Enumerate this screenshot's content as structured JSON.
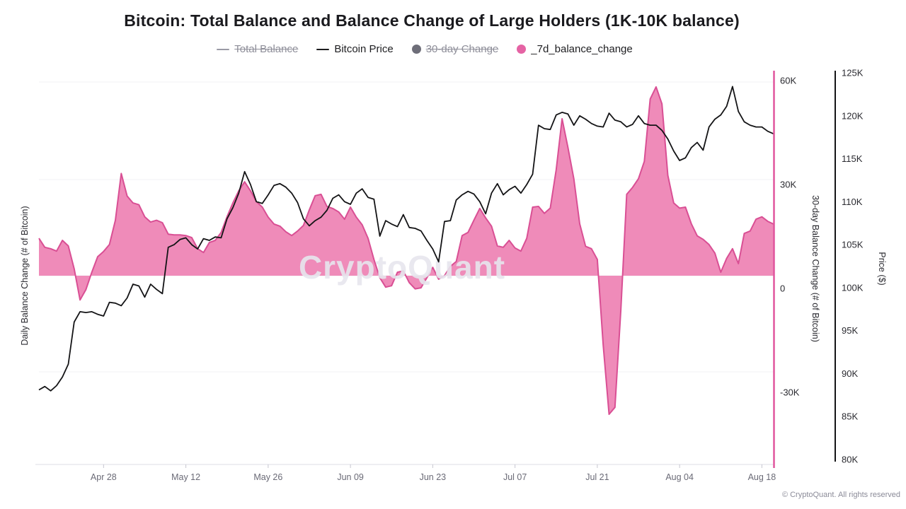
{
  "title": "Bitcoin: Total Balance and Balance Change of Large Holders (1K-10K balance)",
  "watermark": "CryptoQuant",
  "footer": "© CryptoQuant. All rights reserved",
  "legend": {
    "items": [
      {
        "label": "Total Balance",
        "marker": "line",
        "color": "#9a9aa5",
        "disabled": true
      },
      {
        "label": "Bitcoin Price",
        "marker": "line",
        "color": "#1c1c1e",
        "disabled": false
      },
      {
        "label": "30-day Change",
        "marker": "dot",
        "color": "#6e6e79",
        "disabled": true
      },
      {
        "label": "_7d_balance_change",
        "marker": "dot",
        "color": "#e563a4",
        "disabled": false
      }
    ]
  },
  "axes": {
    "y_left_label": "Daily Balance Change (# of Bitcoin)",
    "y_right_inner_label": "30-day Balance Change (# of Bitcoin)",
    "y_right_outer_label": "Price ($)",
    "y_right_inner_ticks": [
      {
        "label": "60K",
        "value": 60
      },
      {
        "label": "30K",
        "value": 30
      },
      {
        "label": "0",
        "value": 0
      },
      {
        "label": "-30K",
        "value": -30
      }
    ],
    "y_right_outer_ticks": [
      {
        "label": "125K",
        "value": 125
      },
      {
        "label": "120K",
        "value": 120
      },
      {
        "label": "115K",
        "value": 115
      },
      {
        "label": "110K",
        "value": 110
      },
      {
        "label": "105K",
        "value": 105
      },
      {
        "label": "100K",
        "value": 100
      },
      {
        "label": "95K",
        "value": 95
      },
      {
        "label": "90K",
        "value": 90
      },
      {
        "label": "85K",
        "value": 85
      },
      {
        "label": "80K",
        "value": 80
      }
    ],
    "x_ticks": [
      {
        "label": "Apr 28",
        "i": 11
      },
      {
        "label": "May 12",
        "i": 25
      },
      {
        "label": "May 26",
        "i": 39
      },
      {
        "label": "Jun 09",
        "i": 53
      },
      {
        "label": "Jun 23",
        "i": 67
      },
      {
        "label": "Jul 07",
        "i": 81
      },
      {
        "label": "Jul 21",
        "i": 95
      },
      {
        "label": "Aug 04",
        "i": 109
      },
      {
        "label": "Aug 18",
        "i": 123
      }
    ]
  },
  "colors": {
    "price_line": "#141416",
    "area_fill": "#ef8bb9",
    "area_stroke": "#d94f94",
    "pink_axis": "#e0569e",
    "grid": "#f2f2f6",
    "x_axis_line": "#dcdce4",
    "x_tick_mark": "#c6c6d0",
    "y_tick_text": "#2a2a30",
    "x_tick_text": "#6a6a76",
    "watermark": "#e7e6ee"
  },
  "chart_data": {
    "type": "combo",
    "title": "Bitcoin: Total Balance and Balance Change of Large Holders (1K-10K balance)",
    "x": [
      "Apr 17",
      "Apr 18",
      "Apr 19",
      "Apr 20",
      "Apr 21",
      "Apr 22",
      "Apr 23",
      "Apr 24",
      "Apr 25",
      "Apr 26",
      "Apr 27",
      "Apr 28",
      "Apr 29",
      "Apr 30",
      "May 01",
      "May 02",
      "May 03",
      "May 04",
      "May 05",
      "May 06",
      "May 07",
      "May 08",
      "May 09",
      "May 10",
      "May 11",
      "May 12",
      "May 13",
      "May 14",
      "May 15",
      "May 16",
      "May 17",
      "May 18",
      "May 19",
      "May 20",
      "May 21",
      "May 22",
      "May 23",
      "May 24",
      "May 25",
      "May 26",
      "May 27",
      "May 28",
      "May 29",
      "May 30",
      "May 31",
      "Jun 01",
      "Jun 02",
      "Jun 03",
      "Jun 04",
      "Jun 05",
      "Jun 06",
      "Jun 07",
      "Jun 08",
      "Jun 09",
      "Jun 10",
      "Jun 11",
      "Jun 12",
      "Jun 13",
      "Jun 14",
      "Jun 15",
      "Jun 16",
      "Jun 17",
      "Jun 18",
      "Jun 19",
      "Jun 20",
      "Jun 21",
      "Jun 22",
      "Jun 23",
      "Jun 24",
      "Jun 25",
      "Jun 26",
      "Jun 27",
      "Jun 28",
      "Jun 29",
      "Jun 30",
      "Jul 01",
      "Jul 02",
      "Jul 03",
      "Jul 04",
      "Jul 05",
      "Jul 06",
      "Jul 07",
      "Jul 08",
      "Jul 09",
      "Jul 10",
      "Jul 11",
      "Jul 12",
      "Jul 13",
      "Jul 14",
      "Jul 15",
      "Jul 16",
      "Jul 17",
      "Jul 18",
      "Jul 19",
      "Jul 20",
      "Jul 21",
      "Jul 22",
      "Jul 23",
      "Jul 24",
      "Jul 25",
      "Jul 26",
      "Jul 27",
      "Jul 28",
      "Jul 29",
      "Jul 30",
      "Jul 31",
      "Aug 01",
      "Aug 02",
      "Aug 03",
      "Aug 04",
      "Aug 05",
      "Aug 06",
      "Aug 07",
      "Aug 08",
      "Aug 09",
      "Aug 10",
      "Aug 11",
      "Aug 12",
      "Aug 13",
      "Aug 14",
      "Aug 15",
      "Aug 16",
      "Aug 17",
      "Aug 18",
      "Aug 19",
      "Aug 20"
    ],
    "series": [
      {
        "name": "Bitcoin Price",
        "type": "line",
        "axis": "price",
        "unit": "thousand USD",
        "values": [
          88.1,
          88.5,
          88.0,
          88.6,
          89.6,
          91.1,
          96.0,
          97.2,
          97.1,
          97.2,
          96.9,
          96.7,
          98.3,
          98.2,
          97.9,
          98.8,
          100.4,
          100.2,
          98.9,
          100.4,
          99.8,
          99.3,
          104.7,
          105.0,
          105.6,
          105.8,
          105.0,
          104.5,
          105.7,
          105.5,
          105.9,
          105.8,
          108.0,
          109.3,
          111.0,
          113.5,
          112.0,
          110.0,
          109.8,
          110.8,
          111.9,
          112.1,
          111.7,
          111.0,
          109.9,
          108.0,
          107.2,
          107.8,
          108.2,
          109.0,
          110.4,
          110.8,
          110.0,
          109.7,
          111.0,
          111.5,
          110.5,
          110.3,
          106.0,
          107.8,
          107.4,
          107.1,
          108.5,
          107.0,
          106.9,
          106.6,
          105.5,
          104.5,
          103.0,
          107.7,
          107.8,
          110.2,
          110.8,
          111.2,
          110.9,
          110.0,
          108.6,
          111.0,
          112.1,
          110.8,
          111.4,
          111.8,
          111.0,
          112.0,
          113.2,
          118.9,
          118.5,
          118.4,
          120.1,
          120.4,
          120.2,
          118.9,
          120.0,
          119.6,
          119.1,
          118.8,
          118.7,
          120.3,
          119.5,
          119.3,
          118.7,
          119.0,
          120.0,
          119.1,
          118.9,
          118.9,
          118.3,
          117.3,
          115.9,
          114.8,
          115.1,
          116.3,
          116.9,
          116.0,
          118.7,
          119.6,
          120.1,
          121.1,
          123.4,
          120.5,
          119.3,
          118.9,
          118.7,
          118.7,
          118.2,
          117.9
        ]
      },
      {
        "name": "_7d_balance_change",
        "type": "area",
        "axis": "balance_7d_hidden",
        "unit": "thousand BTC (approx., plotted on hidden axis)",
        "values": [
          10.8,
          8.2,
          7.8,
          7.1,
          10.2,
          8.6,
          2.0,
          -7.0,
          -4.0,
          1.0,
          5.5,
          7.0,
          9.0,
          16.0,
          29.5,
          23.0,
          21.0,
          20.5,
          17.0,
          15.5,
          16.0,
          15.3,
          12.0,
          11.8,
          11.8,
          11.6,
          11.0,
          7.8,
          6.7,
          9.6,
          10.2,
          12.5,
          17.0,
          21.0,
          24.5,
          27.1,
          24.5,
          21.4,
          19.8,
          16.9,
          14.9,
          14.3,
          12.7,
          11.6,
          12.9,
          14.5,
          19.0,
          23.1,
          23.5,
          20.0,
          19.4,
          18.4,
          16.3,
          19.8,
          16.9,
          14.7,
          10.8,
          4.7,
          -0.6,
          -3.3,
          -2.9,
          1.0,
          1.4,
          -2.0,
          -3.8,
          -3.5,
          -0.6,
          2.4,
          -1.0,
          0.0,
          2.7,
          4.1,
          11.6,
          12.5,
          16.0,
          19.4,
          16.7,
          14.3,
          8.6,
          8.2,
          10.2,
          8.0,
          7.1,
          10.8,
          19.8,
          20.0,
          18.0,
          19.5,
          30.6,
          45.3,
          37.0,
          28.0,
          15.0,
          8.5,
          7.8,
          4.7,
          -20.0,
          -40.0,
          -38.0,
          -10.0,
          23.5,
          25.5,
          28.0,
          33.0,
          51.0,
          54.5,
          49.6,
          29.0,
          21.0,
          19.5,
          19.8,
          15.0,
          11.5,
          10.5,
          9.0,
          6.5,
          1.0,
          5.0,
          7.8,
          3.5,
          12.2,
          12.9,
          16.3,
          17.0,
          15.7,
          14.9
        ]
      }
    ],
    "disabled_series": [
      "Total Balance",
      "30-day Change"
    ],
    "price_axis": {
      "min": 80,
      "max": 125,
      "unit": "thousand USD",
      "position": "right-outer"
    },
    "balance_30d_axis": {
      "ticks": [
        60,
        30,
        0,
        -30
      ],
      "unit": "thousand BTC",
      "position": "right-inner"
    },
    "grid": "faint horizontal lines",
    "legend_position": "top-center"
  }
}
